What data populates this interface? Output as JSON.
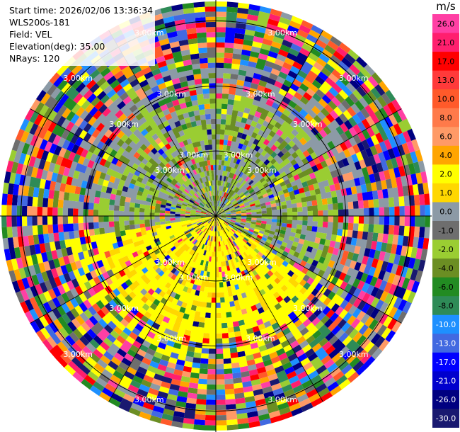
{
  "header": {
    "start_time": "Start time: 2026/02/06 13:36:34",
    "instrument": "WLS200s-181",
    "field": "Field: VEL",
    "elevation": "Elevation(deg): 35.00",
    "nrays": "NRays: 120"
  },
  "chart_data": {
    "type": "ppi",
    "field": "VEL",
    "units": "m/s",
    "nrays": 120,
    "elevation_deg": 35.0,
    "range_rings_km": [
      1.0,
      2.0,
      3.0
    ],
    "range_ring_label": "3.00km",
    "max_range_km": 3.3,
    "colorbar": {
      "units": "m/s",
      "levels": [
        "26.0",
        "21.0",
        "17.0",
        "13.0",
        "10.0",
        "8.0",
        "6.0",
        "4.0",
        "2.0",
        "1.0",
        "0.0",
        "-1.0",
        "-2.0",
        "-4.0",
        "-6.0",
        "-8.0",
        "-10.0",
        "-13.0",
        "-17.0",
        "-21.0",
        "-26.0",
        "-30.0"
      ],
      "colors": [
        "#ff3fa4",
        "#ff1f6e",
        "#ff0000",
        "#ff3a3a",
        "#ff5a2a",
        "#ff7a4a",
        "#ff9a66",
        "#ffa500",
        "#ffff00",
        "#ffd700",
        "#8c9aa6",
        "#6e6e6e",
        "#9acd32",
        "#6b8e23",
        "#228b22",
        "#2e8b57",
        "#1e90ff",
        "#4169e1",
        "#0000ff",
        "#0000cd",
        "#000080",
        "#191970"
      ]
    }
  }
}
